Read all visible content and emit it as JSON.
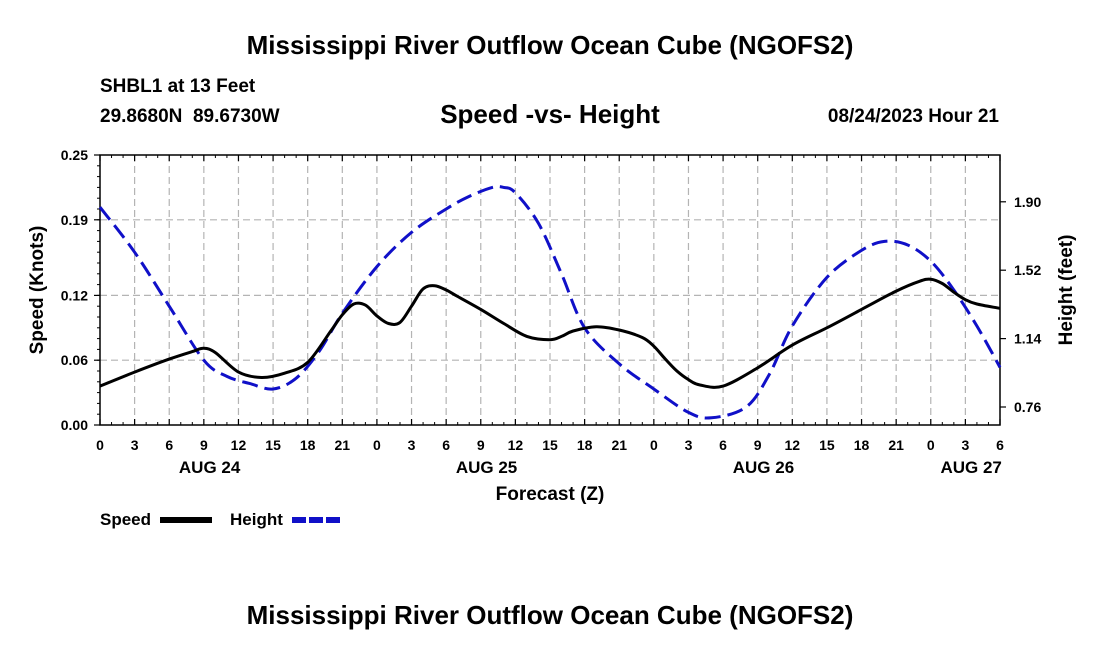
{
  "header": {
    "title": "Mississippi River Outflow Ocean Cube (NGOFS2)",
    "station": "SHBL1 at 13 Feet",
    "coords": "29.8680N  89.6730W",
    "chart_title": "Speed -vs- Height",
    "datetime": "08/24/2023 Hour 21"
  },
  "footer": {
    "title": "Mississippi River Outflow Ocean Cube (NGOFS2)"
  },
  "chart_data": {
    "type": "line",
    "title": "Speed -vs- Height",
    "xlabel": "Forecast (Z)",
    "ylabel": "Speed (Knots)",
    "ylabel_right": "Height (feet)",
    "x_unit": "hours from 00Z AUG 24",
    "xlim": [
      0,
      78
    ],
    "ylim": [
      0,
      0.25
    ],
    "ylim_right": [
      0.66,
      2.16
    ],
    "grid": true,
    "x_ticks": [
      0,
      3,
      6,
      9,
      12,
      15,
      18,
      21,
      24,
      27,
      30,
      33,
      36,
      39,
      42,
      45,
      48,
      51,
      54,
      57,
      60,
      63,
      66,
      69,
      72,
      75,
      78
    ],
    "x_tick_labels": [
      "0",
      "3",
      "6",
      "9",
      "12",
      "15",
      "18",
      "21",
      "0",
      "3",
      "6",
      "9",
      "12",
      "15",
      "18",
      "21",
      "0",
      "3",
      "6",
      "9",
      "12",
      "15",
      "18",
      "21",
      "0",
      "3",
      "6"
    ],
    "y_ticks": [
      0.0,
      0.06,
      0.12,
      0.19,
      0.25
    ],
    "y_tick_labels": [
      "0.00",
      "0.06",
      "0.12",
      "0.19",
      "0.25"
    ],
    "y2_ticks": [
      0.76,
      1.14,
      1.52,
      1.9
    ],
    "y2_tick_labels": [
      "0.76",
      "1.14",
      "1.52",
      "1.90"
    ],
    "date_labels": [
      {
        "text": "AUG 24",
        "x": 9.5
      },
      {
        "text": "AUG 25",
        "x": 33.5
      },
      {
        "text": "AUG 26",
        "x": 57.5
      },
      {
        "text": "AUG 27",
        "x": 75.5
      }
    ],
    "series": [
      {
        "name": "Speed",
        "axis": "left",
        "color": "#000000",
        "dash": "solid",
        "x": [
          0,
          3,
          6,
          8,
          9,
          10,
          12,
          14,
          16,
          18,
          20,
          21,
          22,
          23,
          24,
          25,
          26,
          27,
          28,
          29,
          30,
          31,
          33,
          35,
          37,
          39,
          40,
          41,
          43,
          45,
          47,
          48,
          49,
          50,
          51,
          52,
          54,
          57,
          60,
          63,
          66,
          69,
          71,
          72,
          73,
          74,
          75,
          76,
          78
        ],
        "values": [
          0.036,
          0.049,
          0.061,
          0.068,
          0.071,
          0.067,
          0.049,
          0.044,
          0.048,
          0.058,
          0.087,
          0.102,
          0.112,
          0.111,
          0.101,
          0.094,
          0.095,
          0.11,
          0.126,
          0.129,
          0.125,
          0.119,
          0.107,
          0.094,
          0.082,
          0.079,
          0.082,
          0.087,
          0.091,
          0.088,
          0.081,
          0.073,
          0.061,
          0.05,
          0.042,
          0.037,
          0.036,
          0.053,
          0.074,
          0.09,
          0.107,
          0.124,
          0.133,
          0.135,
          0.131,
          0.123,
          0.116,
          0.112,
          0.108
        ]
      },
      {
        "name": "Height",
        "axis": "right",
        "color": "#1010c8",
        "dash": "dashed",
        "x": [
          0,
          3,
          6,
          9,
          11,
          13,
          15,
          17,
          19,
          21,
          24,
          27,
          30,
          32,
          34,
          35,
          36,
          38,
          40,
          42,
          45,
          48,
          51,
          53,
          56,
          58,
          60,
          63,
          66,
          68,
          70,
          72,
          74,
          76,
          78
        ],
        "values": [
          1.87,
          1.62,
          1.32,
          1.02,
          0.93,
          0.89,
          0.86,
          0.92,
          1.07,
          1.28,
          1.54,
          1.73,
          1.86,
          1.93,
          1.98,
          1.98,
          1.95,
          1.78,
          1.5,
          1.2,
          1.0,
          0.86,
          0.73,
          0.7,
          0.76,
          0.94,
          1.21,
          1.48,
          1.63,
          1.68,
          1.66,
          1.57,
          1.41,
          1.21,
          0.98
        ]
      }
    ]
  }
}
